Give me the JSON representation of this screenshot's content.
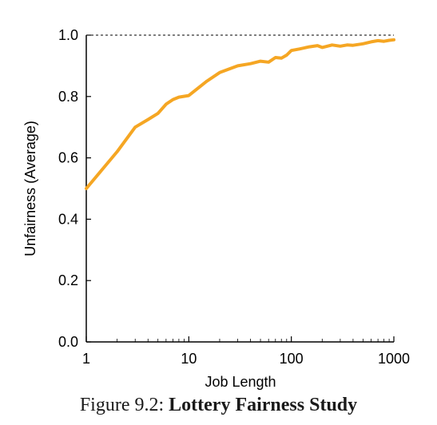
{
  "caption": {
    "prefix": "Figure 9.2:",
    "title": "Lottery Fairness Study"
  },
  "chart_data": {
    "type": "line",
    "xscale": "log",
    "xlim": [
      1,
      1000
    ],
    "ylim": [
      0.0,
      1.0
    ],
    "xlabel": "Job Length",
    "ylabel": "Unfairness (Average)",
    "xticks": [
      1,
      10,
      100,
      1000
    ],
    "xtick_labels": [
      "1",
      "10",
      "100",
      "1000"
    ],
    "yticks": [
      0.0,
      0.2,
      0.4,
      0.6,
      0.8,
      1.0
    ],
    "ytick_labels": [
      "0.0",
      "0.2",
      "0.4",
      "0.6",
      "0.8",
      "1.0"
    ],
    "grid": false,
    "reference_line": {
      "y": 1.0,
      "style": "dashed"
    },
    "series": [
      {
        "color": "#f5a623",
        "x": [
          1,
          2,
          3,
          4,
          5,
          6,
          7,
          8,
          10,
          15,
          20,
          30,
          40,
          50,
          60,
          70,
          80,
          90,
          100,
          120,
          150,
          180,
          200,
          250,
          300,
          350,
          400,
          500,
          600,
          700,
          800,
          900,
          1000
        ],
        "y": [
          0.5,
          0.62,
          0.7,
          0.725,
          0.745,
          0.775,
          0.79,
          0.798,
          0.803,
          0.85,
          0.878,
          0.9,
          0.907,
          0.915,
          0.912,
          0.927,
          0.925,
          0.935,
          0.95,
          0.955,
          0.962,
          0.966,
          0.96,
          0.968,
          0.964,
          0.968,
          0.967,
          0.972,
          0.978,
          0.982,
          0.98,
          0.983,
          0.985
        ]
      }
    ]
  }
}
